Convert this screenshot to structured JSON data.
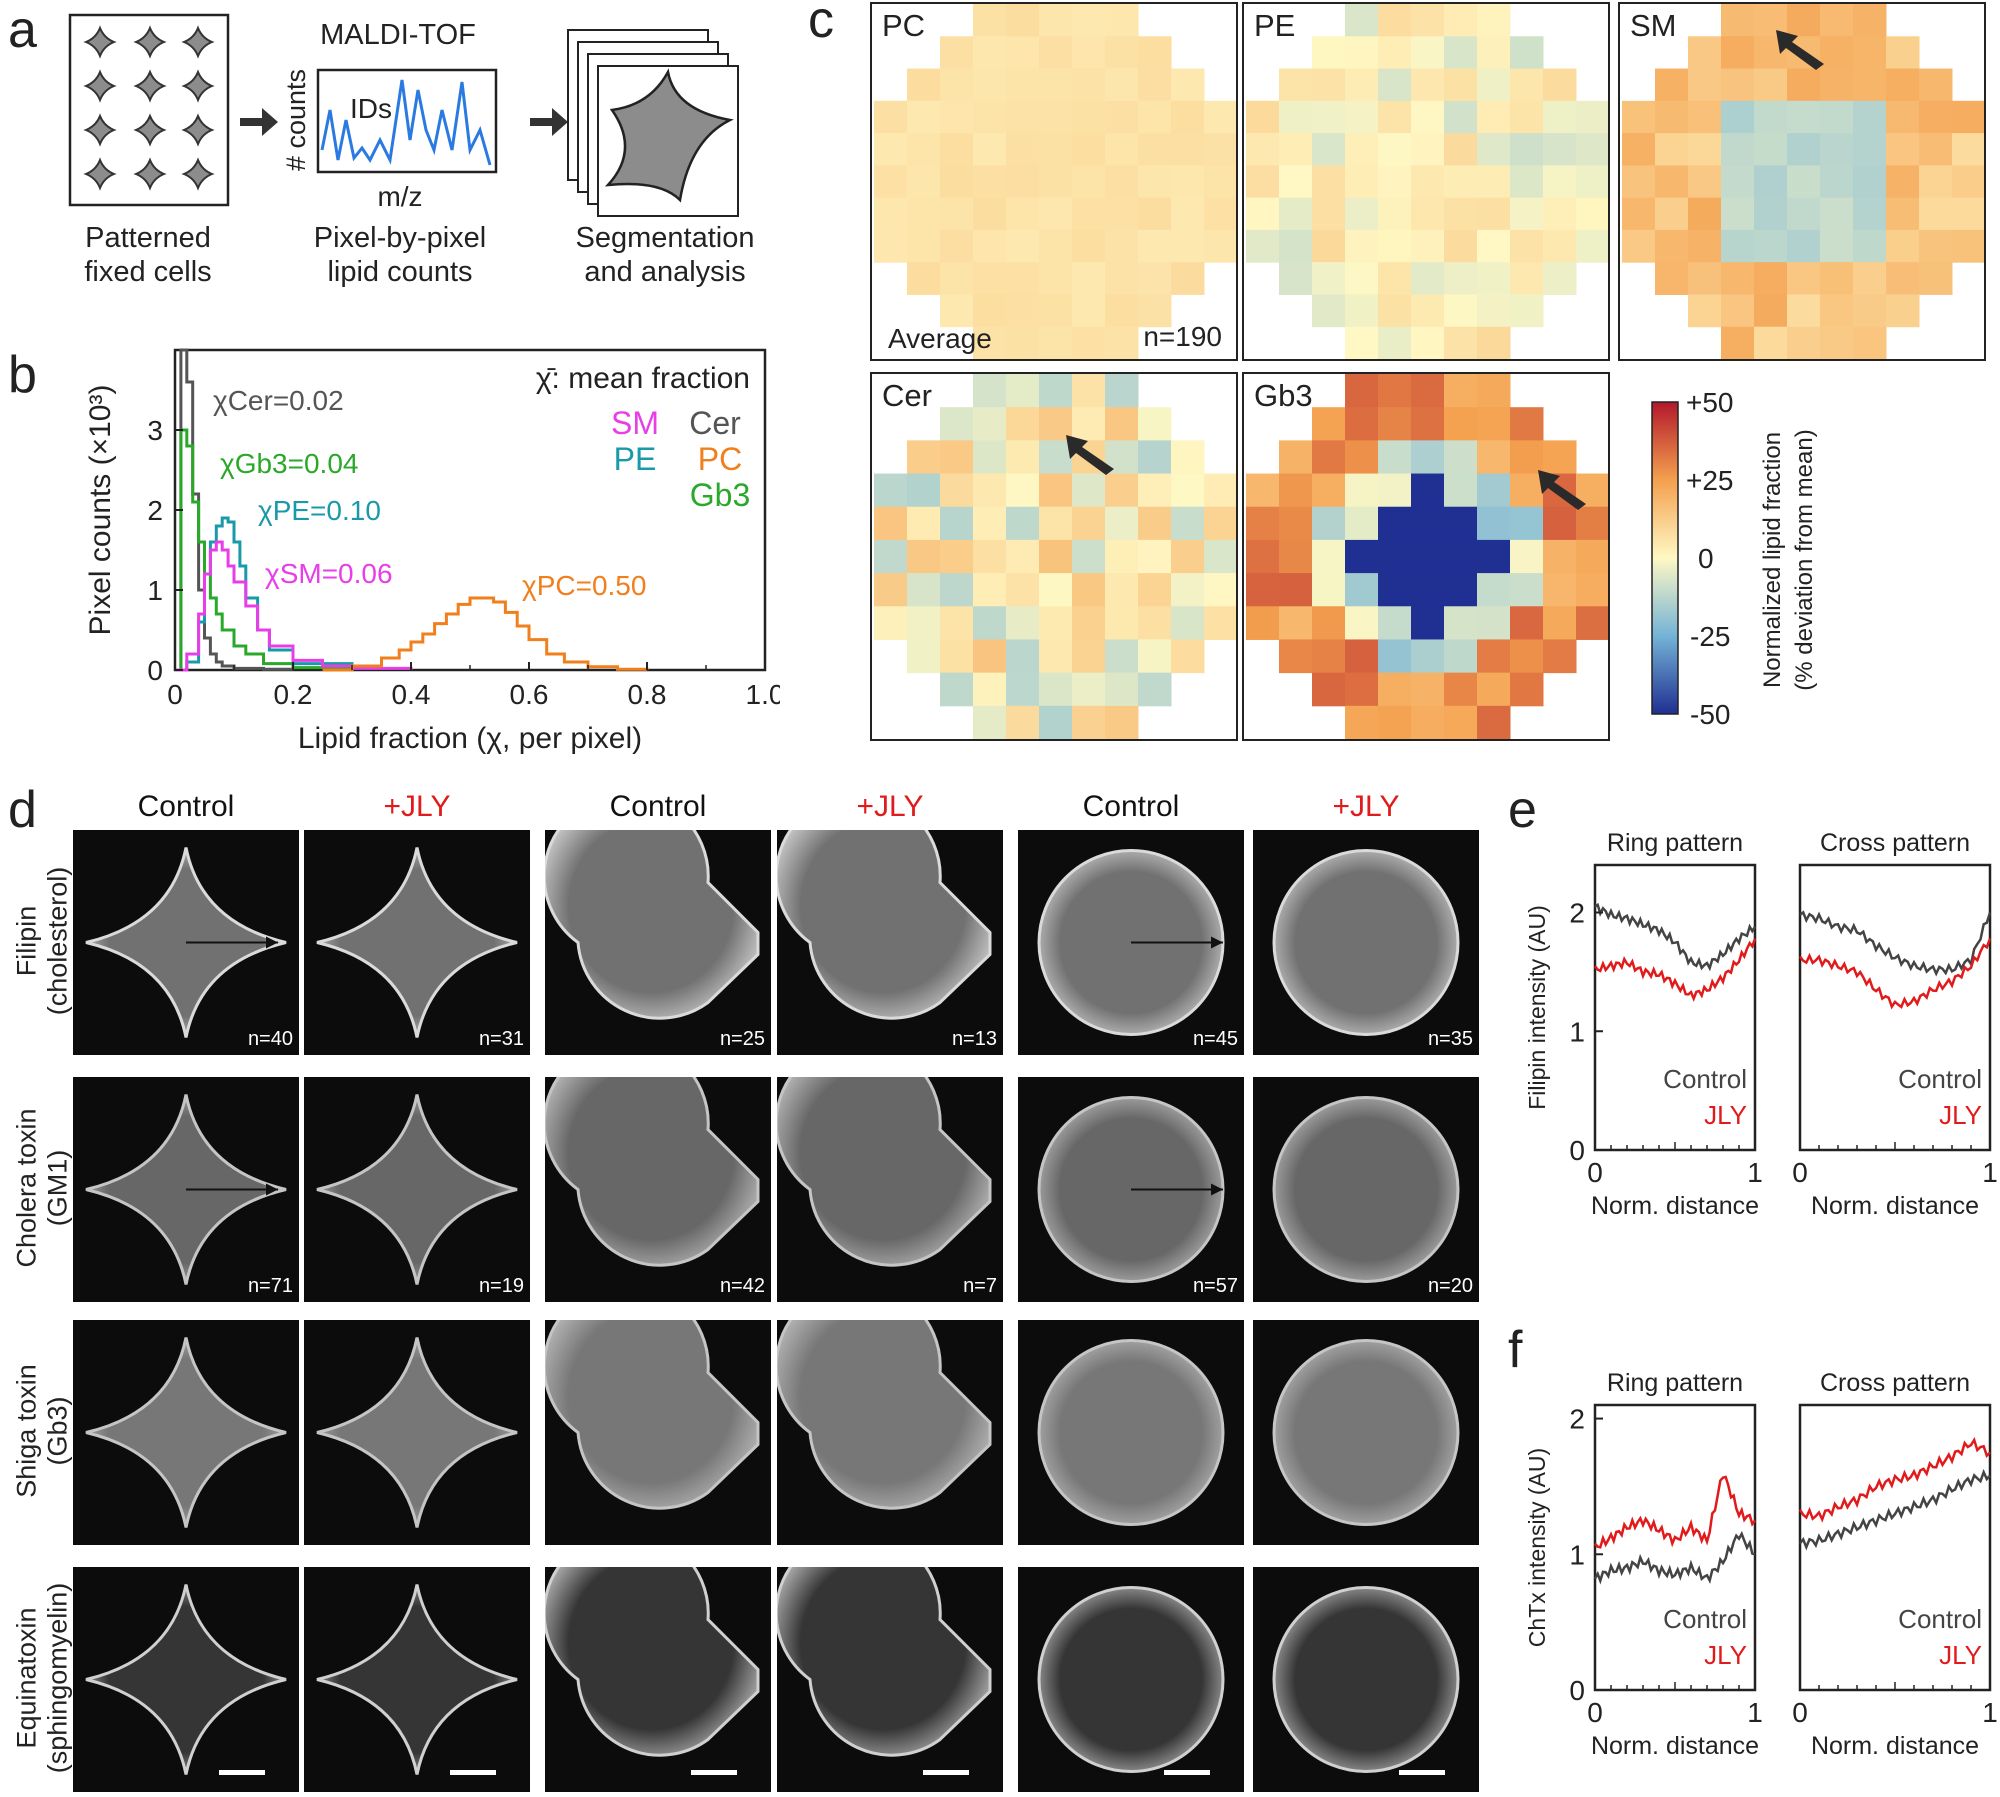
{
  "panels": {
    "a": "a",
    "b": "b",
    "c": "c",
    "d": "d",
    "e": "e",
    "f": "f"
  },
  "panel_a": {
    "step1": {
      "line1": "Patterned",
      "line2": "fixed cells"
    },
    "step2": {
      "title": "MALDI-TOF",
      "ylabel": "# counts",
      "xlabel": "m/z",
      "ids": "IDs",
      "line1": "Pixel-by-pixel",
      "line2": "lipid counts"
    },
    "step3": {
      "line1": "Segmentation",
      "line2": "and analysis"
    }
  },
  "chart_data": [
    {
      "type": "line",
      "id": "histogram",
      "xlabel": "Lipid fraction (χ, per pixel)",
      "ylabel": "Pixel counts (×10³)",
      "xlim": [
        0,
        1.0
      ],
      "ylim": [
        0,
        4
      ],
      "xticks": [
        "0",
        "0.2",
        "0.4",
        "0.6",
        "0.8",
        "1.0"
      ],
      "yticks": [
        "0",
        "1",
        "2",
        "3"
      ],
      "legend_title": "χ̄: mean fraction",
      "legend": [
        {
          "name": "SM",
          "color": "#e83ee8"
        },
        {
          "name": "Cer",
          "color": "#555555"
        },
        {
          "name": "PE",
          "color": "#1a9aa8"
        },
        {
          "name": "PC",
          "color": "#f07f1c"
        },
        {
          "name": "Gb3",
          "color": "#2aa82a"
        }
      ],
      "annotations": [
        {
          "text": "χCer=0.02",
          "color": "#555555"
        },
        {
          "text": "χGb3=0.04",
          "color": "#2aa82a"
        },
        {
          "text": "χPE=0.10",
          "color": "#1a9aa8"
        },
        {
          "text": "χSM=0.06",
          "color": "#e83ee8"
        },
        {
          "text": "χPC=0.50",
          "color": "#f07f1c"
        }
      ],
      "series": [
        {
          "name": "Cer",
          "color": "#555555",
          "x": [
            0,
            0.01,
            0.02,
            0.03,
            0.04,
            0.05,
            0.06,
            0.07,
            0.08,
            0.1,
            0.15,
            0.2
          ],
          "y": [
            0,
            4.0,
            3.6,
            2.2,
            1.0,
            0.4,
            0.2,
            0.1,
            0.05,
            0.02,
            0.01,
            0
          ]
        },
        {
          "name": "Gb3",
          "color": "#2aa82a",
          "x": [
            0,
            0.01,
            0.02,
            0.03,
            0.04,
            0.05,
            0.06,
            0.07,
            0.08,
            0.1,
            0.12,
            0.15,
            0.2,
            0.3
          ],
          "y": [
            0,
            3.0,
            2.8,
            2.1,
            1.6,
            1.2,
            0.9,
            0.7,
            0.5,
            0.3,
            0.2,
            0.08,
            0.03,
            0
          ]
        },
        {
          "name": "PE",
          "color": "#1a9aa8",
          "x": [
            0,
            0.02,
            0.04,
            0.05,
            0.06,
            0.07,
            0.08,
            0.09,
            0.1,
            0.11,
            0.12,
            0.14,
            0.16,
            0.2,
            0.3
          ],
          "y": [
            0,
            0.1,
            0.6,
            1.2,
            1.6,
            1.8,
            1.9,
            1.85,
            1.6,
            1.3,
            0.9,
            0.5,
            0.25,
            0.08,
            0
          ]
        },
        {
          "name": "SM",
          "color": "#e83ee8",
          "x": [
            0,
            0.02,
            0.04,
            0.05,
            0.06,
            0.07,
            0.08,
            0.09,
            0.1,
            0.12,
            0.14,
            0.16,
            0.2,
            0.25,
            0.3,
            0.4
          ],
          "y": [
            0,
            0.2,
            0.7,
            1.2,
            1.5,
            1.6,
            1.5,
            1.3,
            1.1,
            0.8,
            0.5,
            0.3,
            0.12,
            0.05,
            0.02,
            0
          ]
        },
        {
          "name": "PC",
          "color": "#f07f1c",
          "x": [
            0.25,
            0.3,
            0.35,
            0.38,
            0.4,
            0.42,
            0.44,
            0.46,
            0.48,
            0.5,
            0.52,
            0.54,
            0.56,
            0.58,
            0.6,
            0.63,
            0.66,
            0.7,
            0.75,
            0.8
          ],
          "y": [
            0,
            0.05,
            0.15,
            0.25,
            0.35,
            0.45,
            0.58,
            0.7,
            0.82,
            0.9,
            0.9,
            0.85,
            0.72,
            0.55,
            0.38,
            0.2,
            0.1,
            0.04,
            0.01,
            0
          ]
        }
      ]
    },
    {
      "type": "line",
      "id": "e-ring",
      "title": "Ring pattern",
      "xlabel": "Norm. distance",
      "ylabel": "Filipin intensity (AU)",
      "ylim": [
        0,
        2.4
      ],
      "xticks": [
        "0",
        "1"
      ],
      "yticks": [
        "0",
        "1",
        "2"
      ],
      "series": [
        {
          "name": "Control",
          "color": "#444444",
          "x": [
            0,
            0.1,
            0.2,
            0.3,
            0.4,
            0.5,
            0.6,
            0.7,
            0.8,
            0.9,
            1.0
          ],
          "y": [
            2.05,
            1.98,
            1.95,
            1.9,
            1.85,
            1.75,
            1.58,
            1.55,
            1.65,
            1.78,
            1.88
          ]
        },
        {
          "name": "JLY",
          "color": "#e11b1b",
          "x": [
            0,
            0.1,
            0.2,
            0.3,
            0.4,
            0.5,
            0.6,
            0.7,
            0.8,
            0.9,
            1.0
          ],
          "y": [
            1.52,
            1.55,
            1.58,
            1.5,
            1.48,
            1.4,
            1.3,
            1.35,
            1.45,
            1.6,
            1.78
          ]
        }
      ],
      "legend": [
        {
          "name": "Control",
          "color": "#444444"
        },
        {
          "name": "JLY",
          "color": "#e11b1b"
        }
      ]
    },
    {
      "type": "line",
      "id": "e-cross",
      "title": "Cross pattern",
      "xlabel": "Norm. distance",
      "ylim": [
        0,
        2.4
      ],
      "xticks": [
        "0",
        "1"
      ],
      "series": [
        {
          "name": "Control",
          "color": "#444444",
          "x": [
            0,
            0.1,
            0.2,
            0.3,
            0.4,
            0.5,
            0.6,
            0.7,
            0.8,
            0.9,
            1.0
          ],
          "y": [
            1.98,
            1.95,
            1.88,
            1.85,
            1.72,
            1.62,
            1.55,
            1.52,
            1.52,
            1.6,
            2.0
          ]
        },
        {
          "name": "JLY",
          "color": "#e11b1b",
          "x": [
            0,
            0.1,
            0.2,
            0.3,
            0.4,
            0.5,
            0.6,
            0.7,
            0.8,
            0.9,
            1.0
          ],
          "y": [
            1.6,
            1.6,
            1.55,
            1.5,
            1.35,
            1.22,
            1.25,
            1.35,
            1.42,
            1.55,
            1.78
          ]
        }
      ],
      "legend": [
        {
          "name": "Control",
          "color": "#444444"
        },
        {
          "name": "JLY",
          "color": "#e11b1b"
        }
      ]
    },
    {
      "type": "line",
      "id": "f-ring",
      "title": "Ring pattern",
      "xlabel": "Norm. distance",
      "ylabel": "ChTx intensity (AU)",
      "ylim": [
        0,
        2.1
      ],
      "xticks": [
        "0",
        "1"
      ],
      "yticks": [
        "0",
        "1",
        "2"
      ],
      "series": [
        {
          "name": "Control",
          "color": "#444444",
          "x": [
            0,
            0.1,
            0.2,
            0.3,
            0.4,
            0.5,
            0.6,
            0.7,
            0.8,
            0.9,
            1.0
          ],
          "y": [
            0.82,
            0.88,
            0.9,
            0.95,
            0.88,
            0.85,
            0.9,
            0.82,
            0.95,
            1.15,
            1.0
          ]
        },
        {
          "name": "JLY",
          "color": "#e11b1b",
          "x": [
            0,
            0.1,
            0.2,
            0.3,
            0.4,
            0.5,
            0.6,
            0.7,
            0.8,
            0.9,
            1.0
          ],
          "y": [
            1.05,
            1.12,
            1.2,
            1.25,
            1.18,
            1.1,
            1.2,
            1.1,
            1.6,
            1.3,
            1.25
          ]
        }
      ],
      "legend": [
        {
          "name": "Control",
          "color": "#444444"
        },
        {
          "name": "JLY",
          "color": "#e11b1b"
        }
      ]
    },
    {
      "type": "line",
      "id": "f-cross",
      "title": "Cross pattern",
      "xlabel": "Norm. distance",
      "ylim": [
        0,
        2.1
      ],
      "xticks": [
        "0",
        "1"
      ],
      "series": [
        {
          "name": "Control",
          "color": "#444444",
          "x": [
            0,
            0.1,
            0.2,
            0.3,
            0.4,
            0.5,
            0.6,
            0.7,
            0.8,
            0.9,
            1.0
          ],
          "y": [
            1.08,
            1.1,
            1.15,
            1.2,
            1.25,
            1.3,
            1.35,
            1.4,
            1.48,
            1.55,
            1.58
          ]
        },
        {
          "name": "JLY",
          "color": "#e11b1b",
          "x": [
            0,
            0.1,
            0.2,
            0.3,
            0.4,
            0.5,
            0.6,
            0.7,
            0.8,
            0.9,
            1.0
          ],
          "y": [
            1.3,
            1.28,
            1.35,
            1.4,
            1.5,
            1.55,
            1.58,
            1.65,
            1.72,
            1.82,
            1.75
          ]
        }
      ],
      "legend": [
        {
          "name": "Control",
          "color": "#444444"
        },
        {
          "name": "JLY",
          "color": "#e11b1b"
        }
      ]
    }
  ],
  "heatmaps": {
    "pc": {
      "label": "PC",
      "average": "Average",
      "n": "n=190"
    },
    "pe": {
      "label": "PE"
    },
    "sm": {
      "label": "SM"
    },
    "cer": {
      "label": "Cer"
    },
    "gb3": {
      "label": "Gb3"
    },
    "colorbar": {
      "ticks": [
        "+50",
        "+25",
        "0",
        "-25",
        "-50"
      ],
      "label1": "Normalized lipid fraction",
      "label2": "(% deviation from mean)"
    }
  },
  "panel_d": {
    "cols": [
      "Control",
      "+JLY",
      "Control",
      "+JLY",
      "Control",
      "+JLY"
    ],
    "col_colors": [
      "#111111",
      "#e11b1b",
      "#111111",
      "#e11b1b",
      "#111111",
      "#e11b1b"
    ],
    "rows": [
      {
        "l1": "Filipin",
        "l2": "(cholesterol)",
        "n": [
          "n=40",
          "n=31",
          "n=25",
          "n=13",
          "n=45",
          "n=35"
        ]
      },
      {
        "l1": "Cholera toxin",
        "l2": "(GM1)",
        "n": [
          "n=71",
          "n=19",
          "n=42",
          "n=7",
          "n=57",
          "n=20"
        ]
      },
      {
        "l1": "Shiga toxin",
        "l2": "(Gb3)",
        "n": [
          "",
          "",
          "",
          "",
          "",
          ""
        ]
      },
      {
        "l1": "Equinatoxin",
        "l2": "(sphingomyelin)",
        "n": [
          "",
          "",
          "",
          "",
          "",
          ""
        ]
      }
    ]
  }
}
